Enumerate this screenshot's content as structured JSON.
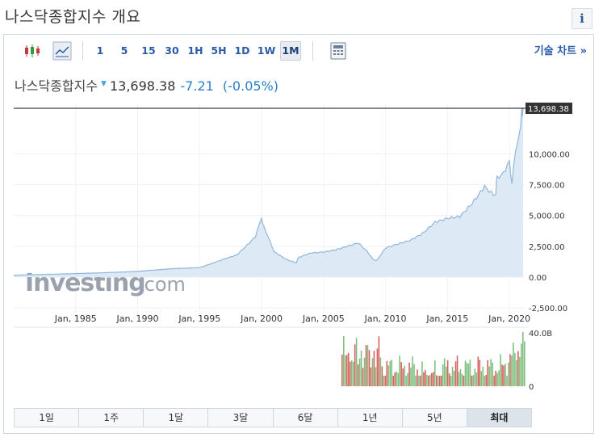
{
  "header": {
    "title": "나스닥종합지수 개요",
    "info_label": "i"
  },
  "toolbar": {
    "intervals": [
      "1",
      "5",
      "15",
      "30",
      "1H",
      "5H",
      "1D",
      "1W",
      "1M"
    ],
    "active_interval": "1M",
    "tech_chart_label": "기술 차트 »",
    "icons": [
      "candlestick-icon",
      "line-chart-icon",
      "calculator-icon"
    ]
  },
  "quote": {
    "name": "나스닥종합지수",
    "direction_icon": "down-triangle-icon",
    "price": "13,698.38",
    "change": "-7.21",
    "change_pct": "(-0.05%)"
  },
  "watermark": {
    "brand": "Investing",
    "suffix": ".com"
  },
  "chart_data": {
    "type": "area",
    "x_ticks": [
      "Jan, 1985",
      "Jan, 1990",
      "Jan, 1995",
      "Jan, 2000",
      "Jan, 2005",
      "Jan, 2010",
      "Jan, 2015",
      "Jan, 2020"
    ],
    "y_ticks": [
      "10,000.00",
      "7,500.00",
      "5,000.00",
      "2,500.00",
      "0.00",
      "-2,500.00"
    ],
    "last_price_label": "13,698.38",
    "ylim": [
      -2500,
      13698.38
    ],
    "volume_ticks": [
      "40.0B",
      "0"
    ],
    "series": [
      {
        "x": [
          1980,
          1985,
          1988,
          1990,
          1993,
          1995,
          1997,
          1998,
          1999,
          1999.5,
          2000,
          2000.2,
          2001,
          2002,
          2002.8,
          2003,
          2004,
          2005,
          2006,
          2007,
          2007.8,
          2008.5,
          2009,
          2009.3,
          2010,
          2011,
          2012,
          2013,
          2014,
          2015,
          2016,
          2017,
          2018,
          2018.9,
          2019,
          2019.5,
          2020,
          2020.2,
          2020.5,
          2020.9,
          2021,
          2021.1
        ],
        "y": [
          150,
          300,
          380,
          450,
          700,
          800,
          1500,
          1800,
          2700,
          3200,
          4700,
          4000,
          2000,
          1400,
          1200,
          1600,
          2000,
          2100,
          2300,
          2600,
          2700,
          2100,
          1400,
          1300,
          2300,
          2600,
          2900,
          3500,
          4500,
          4900,
          5100,
          6200,
          7500,
          6800,
          8000,
          8300,
          9200,
          7800,
          10000,
          12500,
          13500,
          13698
        ]
      }
    ]
  }
}
